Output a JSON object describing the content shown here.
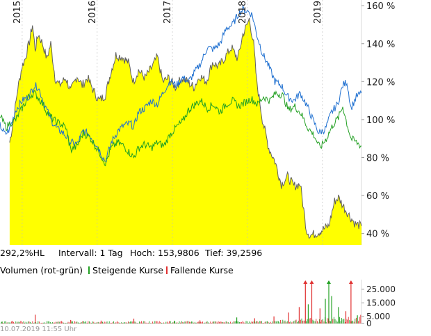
{
  "chart_data": {
    "type": "area",
    "x_axis": {
      "years": [
        "2015",
        "2016",
        "2017",
        "2018",
        "2019"
      ],
      "range": [
        "2014-09-15",
        "2019-07-10"
      ]
    },
    "y_axis": {
      "ticks": [
        40,
        60,
        80,
        100,
        120,
        140,
        160
      ],
      "tick_labels": [
        "40 %",
        "60 %",
        "80 %",
        "100 %",
        "120 %",
        "140 %",
        "160 %"
      ],
      "ylim": [
        34,
        163
      ],
      "grid": false
    },
    "series": [
      {
        "kind": "area",
        "fill": "#ffff00",
        "line": "#606060",
        "points": [
          [
            "2014-11-01",
            88
          ],
          [
            "2014-11-20",
            100
          ],
          [
            "2014-12-10",
            116
          ],
          [
            "2014-12-31",
            128
          ],
          [
            "2015-01-15",
            132
          ],
          [
            "2015-02-05",
            141
          ],
          [
            "2015-02-20",
            150
          ],
          [
            "2015-03-05",
            137
          ],
          [
            "2015-03-20",
            145
          ],
          [
            "2015-04-10",
            140
          ],
          [
            "2015-05-01",
            132
          ],
          [
            "2015-05-20",
            140
          ],
          [
            "2015-06-10",
            122
          ],
          [
            "2015-07-01",
            118
          ],
          [
            "2015-08-01",
            122
          ],
          [
            "2015-08-25",
            115
          ],
          [
            "2015-09-25",
            123
          ],
          [
            "2015-10-20",
            118
          ],
          [
            "2015-11-15",
            122
          ],
          [
            "2015-12-15",
            115
          ],
          [
            "2016-01-10",
            110
          ],
          [
            "2016-02-10",
            113
          ],
          [
            "2016-03-05",
            124
          ],
          [
            "2016-04-01",
            134
          ],
          [
            "2016-05-01",
            133
          ],
          [
            "2016-06-01",
            130
          ],
          [
            "2016-06-25",
            120
          ],
          [
            "2016-07-20",
            126
          ],
          [
            "2016-08-20",
            122
          ],
          [
            "2016-09-20",
            127
          ],
          [
            "2016-10-20",
            133
          ],
          [
            "2016-11-15",
            120
          ],
          [
            "2016-12-15",
            122
          ],
          [
            "2017-01-15",
            117
          ],
          [
            "2017-02-15",
            122
          ],
          [
            "2017-03-15",
            120
          ],
          [
            "2017-04-15",
            117
          ],
          [
            "2017-05-15",
            123
          ],
          [
            "2017-06-15",
            120
          ],
          [
            "2017-07-15",
            130
          ],
          [
            "2017-08-15",
            128
          ],
          [
            "2017-09-15",
            133
          ],
          [
            "2017-10-15",
            138
          ],
          [
            "2017-11-15",
            132
          ],
          [
            "2017-12-10",
            145
          ],
          [
            "2017-12-31",
            150
          ],
          [
            "2018-01-10",
            153
          ],
          [
            "2018-01-31",
            140
          ],
          [
            "2018-02-15",
            120
          ],
          [
            "2018-03-15",
            100
          ],
          [
            "2018-04-15",
            85
          ],
          [
            "2018-05-15",
            78
          ],
          [
            "2018-06-15",
            66
          ],
          [
            "2018-07-15",
            70
          ],
          [
            "2018-08-15",
            65
          ],
          [
            "2018-09-15",
            66
          ],
          [
            "2018-10-15",
            42
          ],
          [
            "2018-11-01",
            39
          ],
          [
            "2018-12-01",
            40
          ],
          [
            "2019-01-01",
            42
          ],
          [
            "2019-02-01",
            44
          ],
          [
            "2019-03-01",
            57
          ],
          [
            "2019-03-20",
            59
          ],
          [
            "2019-04-15",
            54
          ],
          [
            "2019-05-15",
            49
          ],
          [
            "2019-06-10",
            45
          ],
          [
            "2019-07-10",
            44
          ]
        ]
      },
      {
        "kind": "line",
        "color": "#1e6fd0",
        "points": [
          [
            "2014-09-15",
            97
          ],
          [
            "2014-10-10",
            92
          ],
          [
            "2014-11-01",
            95
          ],
          [
            "2014-12-01",
            105
          ],
          [
            "2015-01-01",
            110
          ],
          [
            "2015-02-01",
            112
          ],
          [
            "2015-03-01",
            118
          ],
          [
            "2015-03-20",
            117
          ],
          [
            "2015-04-20",
            108
          ],
          [
            "2015-05-20",
            100
          ],
          [
            "2015-06-20",
            95
          ],
          [
            "2015-07-20",
            93
          ],
          [
            "2015-08-25",
            88
          ],
          [
            "2015-09-25",
            87
          ],
          [
            "2015-10-25",
            94
          ],
          [
            "2015-11-25",
            92
          ],
          [
            "2016-01-01",
            86
          ],
          [
            "2016-02-10",
            78
          ],
          [
            "2016-03-10",
            88
          ],
          [
            "2016-04-10",
            94
          ],
          [
            "2016-05-10",
            97
          ],
          [
            "2016-06-10",
            98
          ],
          [
            "2016-06-27",
            96
          ],
          [
            "2016-07-20",
            104
          ],
          [
            "2016-08-20",
            106
          ],
          [
            "2016-09-20",
            110
          ],
          [
            "2016-10-20",
            108
          ],
          [
            "2016-11-20",
            115
          ],
          [
            "2016-12-20",
            120
          ],
          [
            "2017-01-20",
            118
          ],
          [
            "2017-02-20",
            122
          ],
          [
            "2017-03-20",
            120
          ],
          [
            "2017-04-20",
            125
          ],
          [
            "2017-05-20",
            130
          ],
          [
            "2017-06-20",
            138
          ],
          [
            "2017-07-20",
            137
          ],
          [
            "2017-08-20",
            140
          ],
          [
            "2017-09-20",
            148
          ],
          [
            "2017-10-20",
            150
          ],
          [
            "2017-11-20",
            156
          ],
          [
            "2017-12-10",
            158
          ],
          [
            "2018-01-05",
            157
          ],
          [
            "2018-01-25",
            155
          ],
          [
            "2018-02-15",
            145
          ],
          [
            "2018-03-15",
            135
          ],
          [
            "2018-04-15",
            128
          ],
          [
            "2018-05-15",
            120
          ],
          [
            "2018-06-15",
            118
          ],
          [
            "2018-07-15",
            112
          ],
          [
            "2018-08-15",
            110
          ],
          [
            "2018-09-15",
            114
          ],
          [
            "2018-10-15",
            108
          ],
          [
            "2018-11-15",
            100
          ],
          [
            "2018-12-15",
            93
          ],
          [
            "2019-01-15",
            95
          ],
          [
            "2019-02-15",
            104
          ],
          [
            "2019-03-15",
            108
          ],
          [
            "2019-04-10",
            118
          ],
          [
            "2019-04-30",
            120
          ],
          [
            "2019-05-20",
            106
          ],
          [
            "2019-06-15",
            112
          ],
          [
            "2019-07-10",
            114
          ]
        ]
      },
      {
        "kind": "line",
        "color": "#22a022",
        "points": [
          [
            "2014-09-15",
            102
          ],
          [
            "2014-10-15",
            96
          ],
          [
            "2014-11-01",
            98
          ],
          [
            "2014-12-01",
            100
          ],
          [
            "2015-01-01",
            106
          ],
          [
            "2015-02-01",
            112
          ],
          [
            "2015-03-01",
            114
          ],
          [
            "2015-04-01",
            110
          ],
          [
            "2015-05-01",
            104
          ],
          [
            "2015-06-01",
            100
          ],
          [
            "2015-07-01",
            98
          ],
          [
            "2015-08-01",
            96
          ],
          [
            "2015-08-25",
            84
          ],
          [
            "2015-09-25",
            86
          ],
          [
            "2015-10-25",
            93
          ],
          [
            "2015-12-01",
            90
          ],
          [
            "2016-01-15",
            82
          ],
          [
            "2016-02-10",
            77
          ],
          [
            "2016-03-10",
            85
          ],
          [
            "2016-04-10",
            88
          ],
          [
            "2016-05-10",
            86
          ],
          [
            "2016-06-27",
            80
          ],
          [
            "2016-07-20",
            85
          ],
          [
            "2016-08-20",
            87
          ],
          [
            "2016-09-20",
            85
          ],
          [
            "2016-10-20",
            88
          ],
          [
            "2016-11-20",
            86
          ],
          [
            "2016-12-20",
            92
          ],
          [
            "2017-01-20",
            96
          ],
          [
            "2017-02-20",
            99
          ],
          [
            "2017-03-20",
            105
          ],
          [
            "2017-04-20",
            108
          ],
          [
            "2017-05-20",
            110
          ],
          [
            "2017-06-20",
            106
          ],
          [
            "2017-07-20",
            108
          ],
          [
            "2017-08-20",
            104
          ],
          [
            "2017-09-20",
            108
          ],
          [
            "2017-10-20",
            110
          ],
          [
            "2017-11-20",
            107
          ],
          [
            "2017-12-20",
            109
          ],
          [
            "2018-01-20",
            111
          ],
          [
            "2018-02-20",
            108
          ],
          [
            "2018-03-20",
            112
          ],
          [
            "2018-04-20",
            110
          ],
          [
            "2018-05-20",
            114
          ],
          [
            "2018-06-20",
            113
          ],
          [
            "2018-07-20",
            105
          ],
          [
            "2018-08-20",
            107
          ],
          [
            "2018-09-20",
            103
          ],
          [
            "2018-10-20",
            96
          ],
          [
            "2018-11-20",
            92
          ],
          [
            "2018-12-20",
            85
          ],
          [
            "2019-01-20",
            90
          ],
          [
            "2019-02-20",
            97
          ],
          [
            "2019-03-20",
            101
          ],
          [
            "2019-04-10",
            107
          ],
          [
            "2019-04-30",
            98
          ],
          [
            "2019-05-20",
            90
          ],
          [
            "2019-06-15",
            88
          ],
          [
            "2019-07-10",
            86
          ]
        ]
      }
    ],
    "stats": {
      "performance": "292,2%HL",
      "interval": "Intervall: 1 Tag",
      "high": "Hoch: 153,9806",
      "low": "Tief: 39,2596"
    },
    "volume": {
      "title": "Volumen (rot-grün)",
      "legend_rising": "Steigende Kurse",
      "legend_falling": "Fallende Kurse",
      "rising_color": "#22a022",
      "falling_color": "#e03030",
      "ticks": [
        0,
        5000,
        15000,
        25000
      ],
      "tick_labels": [
        "0",
        "5.000",
        "15.000",
        "25.000"
      ],
      "ylim": [
        0,
        32000
      ],
      "spikes": [
        [
          "2014-09-25",
          1400,
          "rising"
        ],
        [
          "2014-11-15",
          1800,
          "falling"
        ],
        [
          "2015-03-05",
          6400,
          "falling"
        ],
        [
          "2015-08-25",
          2600,
          "falling"
        ],
        [
          "2016-01-20",
          2100,
          "falling"
        ],
        [
          "2016-06-27",
          3500,
          "falling"
        ],
        [
          "2017-01-10",
          1900,
          "rising"
        ],
        [
          "2017-05-15",
          2300,
          "falling"
        ],
        [
          "2017-11-10",
          4400,
          "rising"
        ],
        [
          "2018-02-05",
          3800,
          "falling"
        ],
        [
          "2018-05-10",
          5200,
          "falling"
        ],
        [
          "2018-07-20",
          8000,
          "falling"
        ],
        [
          "2018-09-10",
          12000,
          "falling"
        ],
        [
          "2018-10-10",
          31000,
          "falling"
        ],
        [
          "2018-10-24",
          14000,
          "rising"
        ],
        [
          "2018-11-10",
          31000,
          "falling"
        ],
        [
          "2018-12-20",
          11000,
          "falling"
        ],
        [
          "2019-01-15",
          18000,
          "rising"
        ],
        [
          "2019-02-01",
          31000,
          "rising"
        ],
        [
          "2019-02-15",
          20000,
          "rising"
        ],
        [
          "2019-03-20",
          12000,
          "rising"
        ],
        [
          "2019-04-25",
          9000,
          "falling"
        ],
        [
          "2019-05-20",
          31000,
          "falling"
        ],
        [
          "2019-06-20",
          6000,
          "rising"
        ]
      ]
    }
  },
  "footer": {
    "timestamp": "10.07.2019 11:55 Uhr"
  }
}
